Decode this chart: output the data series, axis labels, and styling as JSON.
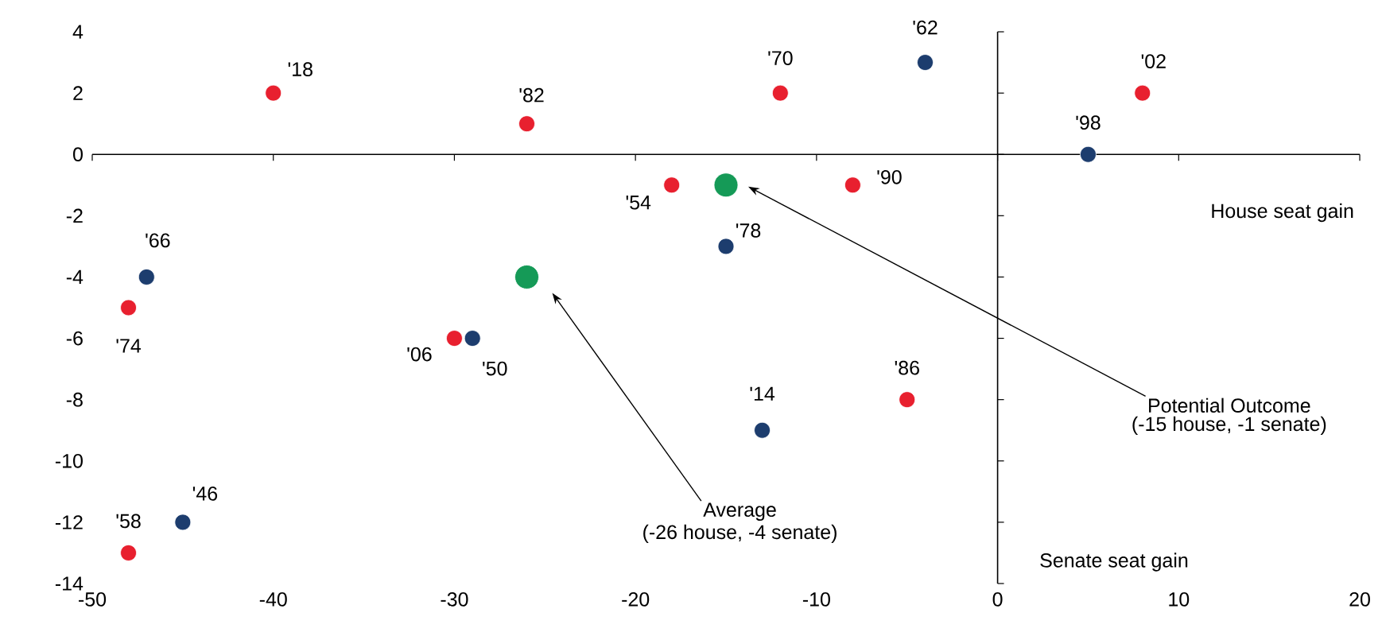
{
  "chart_data": {
    "type": "scatter",
    "xlabel": "House seat gain",
    "ylabel": "Senate seat gain",
    "xlim": [
      -50,
      20
    ],
    "ylim": [
      -14,
      4
    ],
    "xticks": [
      -50,
      -40,
      -30,
      -20,
      -10,
      0,
      10,
      20
    ],
    "yticks": [
      -14,
      -12,
      -10,
      -8,
      -6,
      -4,
      -2,
      0,
      2,
      4
    ],
    "marker": "circle",
    "series": [
      {
        "color": "#e8202f",
        "x": [
          -40,
          -26,
          -12,
          8,
          -18,
          -8,
          -48,
          -30,
          -5,
          -48
        ],
        "values": [
          2,
          1,
          2,
          2,
          -1,
          -1,
          -5,
          -6,
          -8,
          -13
        ]
      },
      {
        "color": "#1d3d6e",
        "x": [
          -4,
          5,
          -15,
          -47,
          -29,
          -13,
          -45
        ],
        "values": [
          3,
          0,
          -3,
          -4,
          -6,
          -9,
          -12
        ]
      },
      {
        "color": "#159a57",
        "x": [
          -15,
          -26
        ],
        "values": [
          -1,
          -4
        ]
      }
    ],
    "annotations": [
      {
        "text": "'18",
        "x": -40,
        "y": 2
      },
      {
        "text": "'82",
        "x": -26,
        "y": 1
      },
      {
        "text": "'70",
        "x": -12,
        "y": 2
      },
      {
        "text": "'62",
        "x": -4,
        "y": 3
      },
      {
        "text": "'02",
        "x": 8,
        "y": 2
      },
      {
        "text": "'98",
        "x": 5,
        "y": 0
      },
      {
        "text": "'54",
        "x": -18,
        "y": -1
      },
      {
        "text": "'90",
        "x": -8,
        "y": -1
      },
      {
        "text": "'78",
        "x": -15,
        "y": -3
      },
      {
        "text": "'66",
        "x": -47,
        "y": -4
      },
      {
        "text": "'74",
        "x": -48,
        "y": -5
      },
      {
        "text": "'06",
        "x": -30,
        "y": -6
      },
      {
        "text": "'50",
        "x": -29,
        "y": -6
      },
      {
        "text": "'14",
        "x": -13,
        "y": -9
      },
      {
        "text": "'86",
        "x": -5,
        "y": -8
      },
      {
        "text": "'46",
        "x": -45,
        "y": -12
      },
      {
        "text": "'58",
        "x": -48,
        "y": -13
      },
      "Potential Outcome",
      "(-15 house, -1 senate)",
      "Average",
      "(-26 house, -4 senate)"
    ]
  }
}
